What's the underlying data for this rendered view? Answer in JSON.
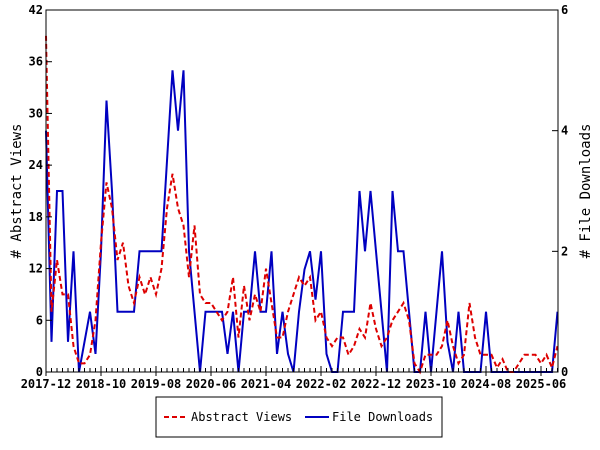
{
  "chart_data": {
    "type": "line",
    "title": "",
    "xlabel": "",
    "ylabel": "# Abstract Views",
    "y2label": "# File Downloads",
    "ylim": [
      0,
      42
    ],
    "y2lim": [
      0,
      6
    ],
    "yticks": [
      0,
      6,
      12,
      18,
      24,
      30,
      36,
      42
    ],
    "y2ticks": [
      0,
      2,
      4,
      6
    ],
    "x_start": "2017-12",
    "x_months": 94,
    "xtick_labels": [
      "2017-12",
      "2018-10",
      "2019-08",
      "2020-06",
      "2021-04",
      "2022-02",
      "2022-12",
      "2023-10",
      "2024-08",
      "2025-06"
    ],
    "xtick_every_months": 10,
    "legend_position": "bottom",
    "colors": {
      "views": "#dd0000",
      "downloads": "#0000c0"
    },
    "series": [
      {
        "name": "Abstract Views",
        "axis": "left",
        "style": "dashed",
        "values": [
          39,
          7,
          13,
          9,
          9,
          3,
          1,
          1,
          2,
          6,
          15,
          22,
          19,
          13,
          15,
          10,
          8,
          11,
          9,
          11,
          9,
          12,
          19,
          23,
          19,
          17,
          11,
          17,
          9,
          8,
          8,
          7,
          6,
          7,
          11,
          4,
          10,
          6,
          9,
          7,
          12,
          8,
          4,
          4,
          7,
          9,
          11,
          10,
          11,
          6,
          7,
          4,
          3,
          4,
          4,
          2,
          3,
          5,
          4,
          8,
          5,
          3,
          4,
          6,
          7,
          8,
          6,
          1,
          0,
          2,
          2,
          2,
          3,
          6,
          3,
          1,
          2,
          8,
          4,
          2,
          2,
          2,
          0.5,
          1.5,
          0,
          0,
          1,
          2,
          2,
          2,
          1,
          2,
          0.5,
          3
        ]
      },
      {
        "name": "File Downloads",
        "axis": "right",
        "style": "solid",
        "values": [
          4,
          0.5,
          3,
          3,
          0.5,
          2,
          0,
          0.5,
          1,
          0.3,
          2,
          4.5,
          3,
          1,
          1,
          1,
          1,
          2,
          2,
          2,
          2,
          2,
          3.5,
          5,
          4,
          5,
          2,
          1,
          0,
          1,
          1,
          1,
          1,
          0.3,
          1,
          0,
          1,
          1,
          2,
          1,
          1,
          2,
          0.3,
          1,
          0.3,
          0,
          1,
          1.7,
          2,
          1.2,
          2,
          0.3,
          0,
          0,
          1,
          1,
          1,
          3,
          2,
          3,
          2,
          1,
          0,
          3,
          2,
          2,
          1,
          0,
          0,
          1,
          0,
          1,
          2,
          0.5,
          0,
          1,
          0,
          0,
          0,
          0,
          1,
          0,
          0,
          0,
          0,
          0,
          0,
          0,
          0,
          0,
          0,
          0,
          0,
          1
        ]
      }
    ]
  }
}
